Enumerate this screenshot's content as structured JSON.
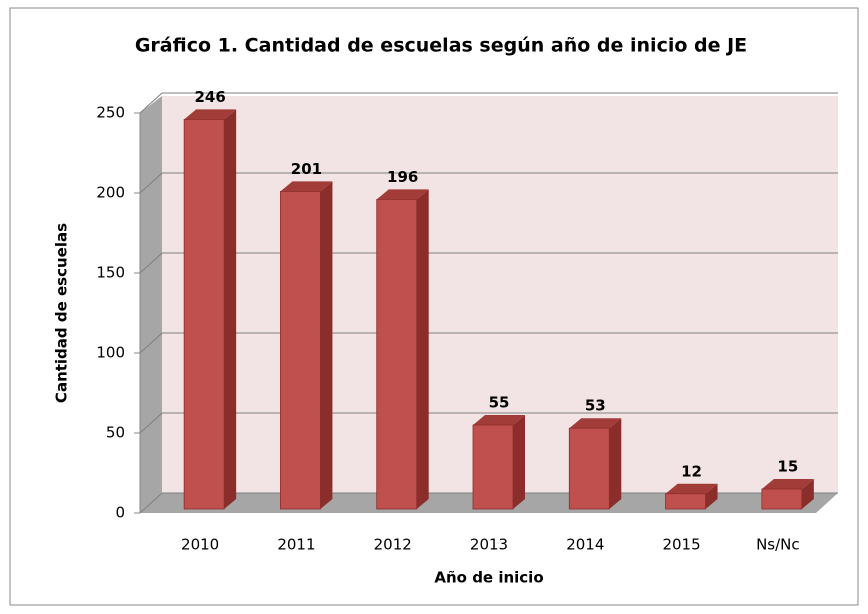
{
  "chart_data": {
    "type": "bar",
    "title": "Gráfico 1. Cantidad de escuelas según año de inicio de JE",
    "categories": [
      "2010",
      "2011",
      "2012",
      "2013",
      "2014",
      "2015",
      "Ns/Nc"
    ],
    "values": [
      246,
      201,
      196,
      55,
      53,
      12,
      15
    ],
    "color": "#c0504d",
    "x_label": "Año de inicio",
    "y_label": "Cantidad de escuelas",
    "ylim": [
      0,
      250
    ],
    "yticks": [
      0,
      50,
      100,
      150,
      200,
      250
    ],
    "grid": true
  }
}
